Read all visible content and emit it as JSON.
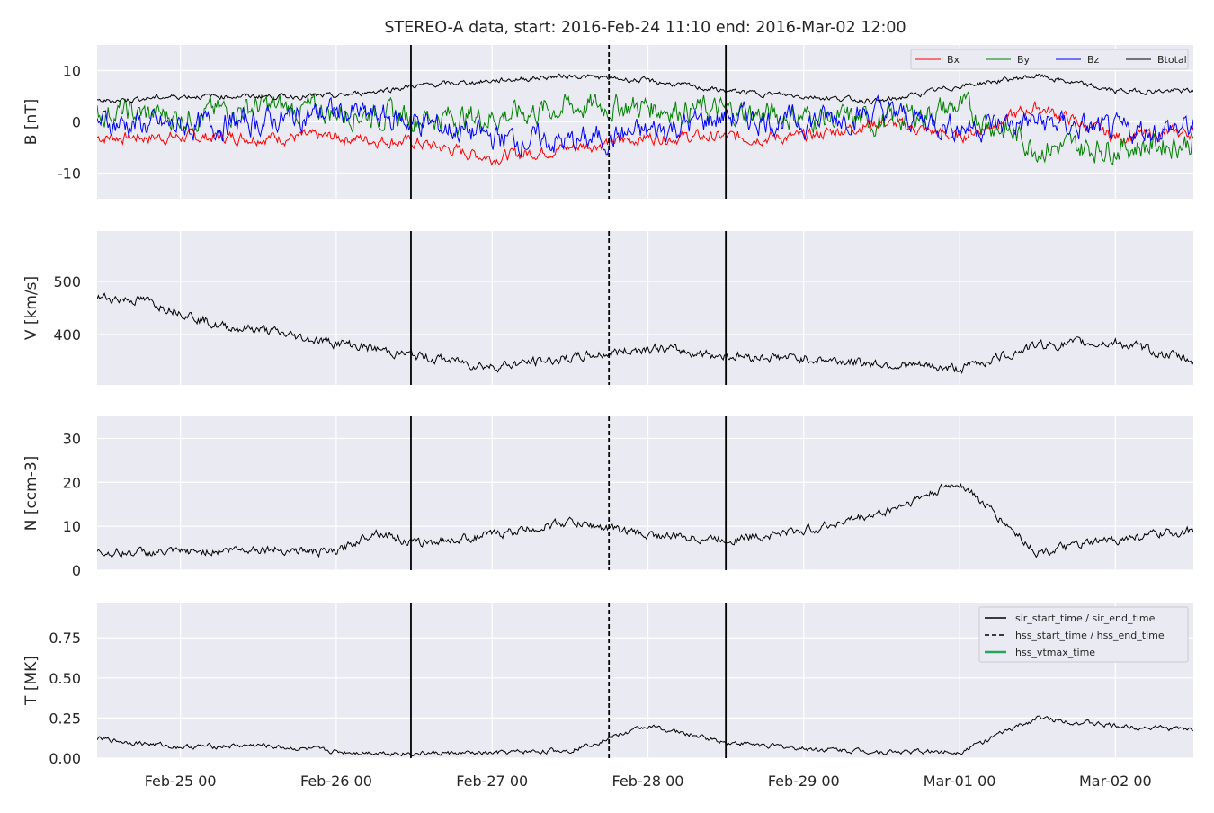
{
  "chart_data": {
    "type": "line",
    "title": "STEREO-A data, start: 2016-Feb-24 11:10  end: 2016-Mar-02 12:00",
    "x_range": [
      "2016-02-24 11:10",
      "2016-03-02 12:00"
    ],
    "x_ticks": [
      "Feb-25 00",
      "Feb-26 00",
      "Feb-27 00",
      "Feb-28 00",
      "Feb-29 00",
      "Mar-01 00",
      "Mar-02 00"
    ],
    "grid": true,
    "vertical_lines": [
      {
        "time": "2016-02-26 11:30",
        "style": "solid",
        "label": "sir_start_time / sir_end_time"
      },
      {
        "time": "2016-02-27 18:00",
        "style": "dashed",
        "label": "hss_start_time / hss_end_time"
      },
      {
        "time": "2016-02-28 12:00",
        "style": "solid",
        "label": "sir_start_time / sir_end_time"
      }
    ],
    "panels": [
      {
        "ylabel": "B [nT]",
        "ylim": [
          -15,
          15
        ],
        "yticks": [
          -10,
          0,
          10
        ],
        "legend": {
          "placement": "top-right",
          "entries": [
            "Bx",
            "By",
            "Bz",
            "Btotal"
          ]
        },
        "series": [
          {
            "name": "Bx",
            "color": "#ff0000",
            "x": [
              "2016-02-24 11:10",
              "2016-02-25 00:00",
              "2016-02-25 12:00",
              "2016-02-26 00:00",
              "2016-02-26 12:00",
              "2016-02-27 00:00",
              "2016-02-27 12:00",
              "2016-02-28 00:00",
              "2016-02-28 12:00",
              "2016-02-29 00:00",
              "2016-02-29 12:00",
              "2016-03-01 00:00",
              "2016-03-01 12:00",
              "2016-03-02 00:00",
              "2016-03-02 12:00"
            ],
            "values": [
              -3,
              -3,
              -3,
              -3,
              -4,
              -7,
              -5,
              -3,
              -3,
              -3,
              0,
              -3,
              3,
              -3,
              -2
            ]
          },
          {
            "name": "By",
            "color": "#008000",
            "x": [
              "2016-02-24 11:10",
              "2016-02-25 00:00",
              "2016-02-25 12:00",
              "2016-02-26 00:00",
              "2016-02-26 12:00",
              "2016-02-27 00:00",
              "2016-02-27 12:00",
              "2016-02-28 00:00",
              "2016-02-28 12:00",
              "2016-02-29 00:00",
              "2016-02-29 12:00",
              "2016-03-01 00:00",
              "2016-03-01 12:00",
              "2016-03-02 00:00",
              "2016-03-02 12:00"
            ],
            "values": [
              2,
              1,
              3,
              2,
              1,
              1,
              3,
              3,
              2,
              1,
              0,
              3,
              -5,
              -5,
              -4
            ]
          },
          {
            "name": "Bz",
            "color": "#0000ff",
            "x": [
              "2016-02-24 11:10",
              "2016-02-25 00:00",
              "2016-02-25 12:00",
              "2016-02-26 00:00",
              "2016-02-26 12:00",
              "2016-02-27 00:00",
              "2016-02-27 12:00",
              "2016-02-28 00:00",
              "2016-02-28 12:00",
              "2016-02-29 00:00",
              "2016-02-29 12:00",
              "2016-03-01 00:00",
              "2016-03-01 12:00",
              "2016-03-02 00:00",
              "2016-03-02 12:00"
            ],
            "values": [
              0,
              -1,
              0,
              2,
              0,
              -3,
              -4,
              -2,
              1,
              0,
              2,
              -1,
              0,
              -2,
              -1
            ]
          },
          {
            "name": "Btotal",
            "color": "#000000",
            "x": [
              "2016-02-24 11:10",
              "2016-02-25 00:00",
              "2016-02-25 12:00",
              "2016-02-26 00:00",
              "2016-02-26 12:00",
              "2016-02-27 00:00",
              "2016-02-27 12:00",
              "2016-02-28 00:00",
              "2016-02-28 12:00",
              "2016-02-29 00:00",
              "2016-02-29 12:00",
              "2016-03-01 00:00",
              "2016-03-01 12:00",
              "2016-03-02 00:00",
              "2016-03-02 12:00"
            ],
            "values": [
              4,
              5,
              5,
              5,
              7,
              8,
              9,
              8,
              6,
              5,
              4,
              7,
              9,
              6,
              6
            ]
          }
        ]
      },
      {
        "ylabel": "V [km/s]",
        "ylim": [
          305,
          595
        ],
        "yticks": [
          400,
          500
        ],
        "series": [
          {
            "color": "#000000",
            "x": [
              "2016-02-24 11:10",
              "2016-02-24 18:00",
              "2016-02-25 00:00",
              "2016-02-25 06:00",
              "2016-02-25 12:00",
              "2016-02-25 18:00",
              "2016-02-26 00:00",
              "2016-02-26 12:00",
              "2016-02-27 00:00",
              "2016-02-27 12:00",
              "2016-02-28 00:00",
              "2016-02-28 12:00",
              "2016-02-29 00:00",
              "2016-02-29 12:00",
              "2016-03-01 00:00",
              "2016-03-01 12:00",
              "2016-03-02 00:00",
              "2016-03-02 12:00"
            ],
            "values": [
              470,
              465,
              445,
              415,
              410,
              395,
              385,
              360,
              340,
              355,
              375,
              360,
              355,
              345,
              335,
              380,
              385,
              350
            ]
          }
        ]
      },
      {
        "ylabel": "N [ccm-3]",
        "ylim": [
          0,
          35
        ],
        "yticks": [
          0,
          10,
          20,
          30
        ],
        "series": [
          {
            "color": "#000000",
            "x": [
              "2016-02-24 11:10",
              "2016-02-25 00:00",
              "2016-02-25 12:00",
              "2016-02-26 00:00",
              "2016-02-26 06:00",
              "2016-02-26 12:00",
              "2016-02-27 00:00",
              "2016-02-27 12:00",
              "2016-02-28 00:00",
              "2016-02-28 12:00",
              "2016-02-29 00:00",
              "2016-02-29 12:00",
              "2016-03-01 00:00",
              "2016-03-01 12:00",
              "2016-03-02 00:00",
              "2016-03-02 12:00"
            ],
            "values": [
              4,
              4,
              5,
              4,
              9,
              6,
              8,
              11,
              8,
              7,
              9,
              13,
              20,
              4,
              7,
              9
            ]
          }
        ]
      },
      {
        "ylabel": "T [MK]",
        "ylim": [
          0,
          0.97
        ],
        "yticks": [
          0.0,
          0.25,
          0.5,
          0.75
        ],
        "legend": {
          "placement": "top-right",
          "entries": [
            "sir_start_time / sir_end_time",
            "hss_start_time / hss_end_time",
            "hss_vtmax_time"
          ]
        },
        "series": [
          {
            "color": "#000000",
            "x": [
              "2016-02-24 11:10",
              "2016-02-25 00:00",
              "2016-02-25 12:00",
              "2016-02-26 00:00",
              "2016-02-26 12:00",
              "2016-02-27 00:00",
              "2016-02-27 12:00",
              "2016-02-28 00:00",
              "2016-02-28 12:00",
              "2016-02-29 00:00",
              "2016-02-29 12:00",
              "2016-03-01 00:00",
              "2016-03-01 12:00",
              "2016-03-02 00:00",
              "2016-03-02 12:00"
            ],
            "values": [
              0.12,
              0.07,
              0.08,
              0.04,
              0.03,
              0.03,
              0.05,
              0.2,
              0.1,
              0.06,
              0.04,
              0.04,
              0.25,
              0.2,
              0.18
            ]
          }
        ]
      }
    ],
    "legend_colors": {
      "sir": "#000000",
      "hss": "#000000",
      "hss_vtmax": "#2ca25f"
    }
  }
}
